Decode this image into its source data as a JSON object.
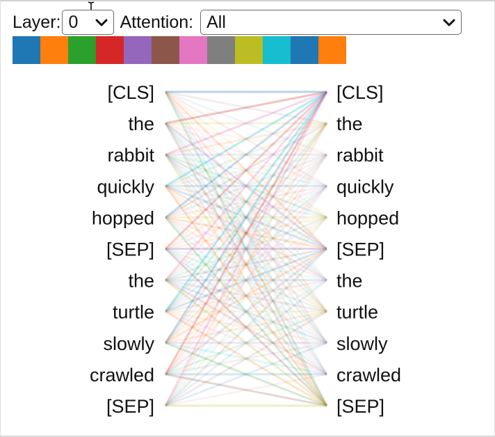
{
  "layer": {
    "label": "Layer:",
    "value": "0"
  },
  "attention": {
    "label": "Attention:",
    "value": "All"
  },
  "heads": [
    {
      "color": "#1f77b4"
    },
    {
      "color": "#ff7f0e"
    },
    {
      "color": "#2ca02c"
    },
    {
      "color": "#d62728"
    },
    {
      "color": "#9467bd"
    },
    {
      "color": "#8c564b"
    },
    {
      "color": "#e377c2"
    },
    {
      "color": "#7f7f7f"
    },
    {
      "color": "#bcbd22"
    },
    {
      "color": "#17becf"
    },
    {
      "color": "#1f77b4"
    },
    {
      "color": "#ff7f0e"
    }
  ],
  "left_tokens": [
    "[CLS]",
    "the",
    "rabbit",
    "quickly",
    "hopped",
    "[SEP]",
    "the",
    "turtle",
    "slowly",
    "crawled",
    "[SEP]"
  ],
  "right_tokens": [
    "[CLS]",
    "the",
    "rabbit",
    "quickly",
    "hopped",
    "[SEP]",
    "the",
    "turtle",
    "slowly",
    "crawled",
    "[SEP]"
  ]
}
